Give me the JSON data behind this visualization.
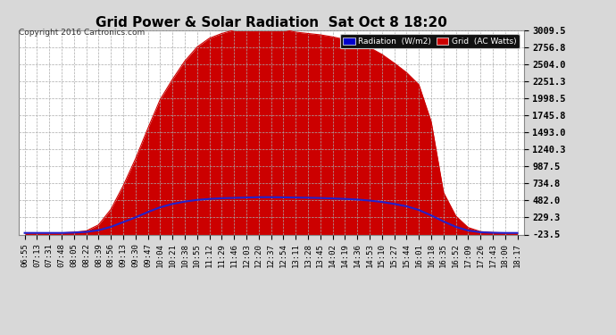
{
  "title": "Grid Power & Solar Radiation  Sat Oct 8 18:20",
  "copyright": "Copyright 2016 Cartronics.com",
  "yticks": [
    3009.5,
    2756.8,
    2504.0,
    2251.3,
    1998.5,
    1745.8,
    1493.0,
    1240.3,
    987.5,
    734.8,
    482.0,
    229.3,
    -23.5
  ],
  "ymin": -23.5,
  "ymax": 3009.5,
  "x_labels": [
    "06:55",
    "07:13",
    "07:31",
    "07:48",
    "08:05",
    "08:22",
    "08:39",
    "08:56",
    "09:13",
    "09:30",
    "09:47",
    "10:04",
    "10:21",
    "10:38",
    "10:55",
    "11:12",
    "11:29",
    "11:46",
    "12:03",
    "12:20",
    "12:37",
    "12:54",
    "13:11",
    "13:28",
    "13:45",
    "14:02",
    "14:19",
    "14:36",
    "14:53",
    "15:10",
    "15:27",
    "15:44",
    "16:01",
    "16:18",
    "16:35",
    "16:52",
    "17:09",
    "17:26",
    "17:43",
    "18:00",
    "18:17"
  ],
  "solar_values": [
    0,
    0,
    0,
    0,
    10,
    30,
    120,
    350,
    700,
    1100,
    1550,
    1980,
    2280,
    2550,
    2760,
    2890,
    2960,
    3010,
    3050,
    3060,
    3040,
    3020,
    2980,
    2960,
    2940,
    2910,
    2870,
    2820,
    2750,
    2650,
    2520,
    2380,
    2200,
    1650,
    600,
    250,
    80,
    20,
    5,
    0,
    0
  ],
  "grid_values": [
    0,
    0,
    0,
    0,
    5,
    15,
    40,
    90,
    160,
    230,
    310,
    380,
    430,
    465,
    490,
    505,
    515,
    520,
    525,
    530,
    530,
    528,
    525,
    522,
    518,
    512,
    505,
    495,
    480,
    460,
    430,
    395,
    340,
    260,
    170,
    90,
    35,
    10,
    3,
    0,
    0
  ],
  "background_color": "#d8d8d8",
  "plot_bg_color": "#ffffff",
  "grid_color": "#aaaaaa",
  "solar_color": "#cc0000",
  "grid_line_color": "#2222cc",
  "title_color": "#000000",
  "copyright_color": "#333333",
  "legend_radiation_bg": "#0000cc",
  "legend_grid_bg": "#cc0000",
  "legend_text_color": "#ffffff",
  "title_fontsize": 11,
  "ytick_fontsize": 7.5,
  "xtick_fontsize": 6.5
}
